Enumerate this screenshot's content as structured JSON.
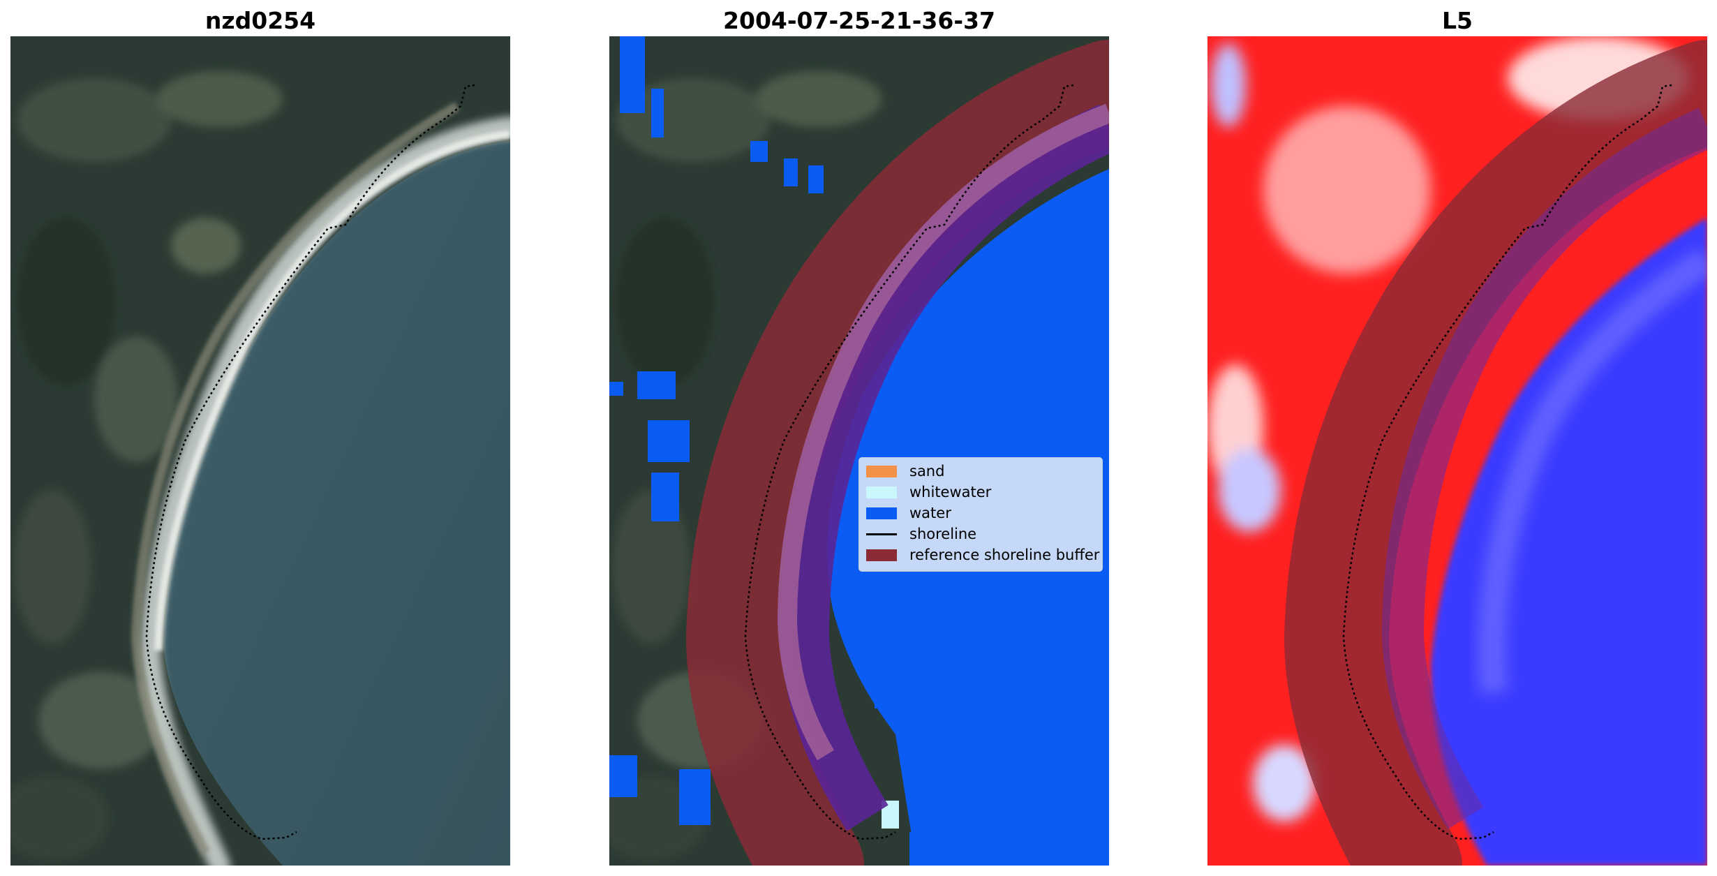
{
  "panels": [
    {
      "title": "nzd0254"
    },
    {
      "title": "2004-07-25-21-36-37"
    },
    {
      "title": "L5"
    }
  ],
  "legend": {
    "items": [
      {
        "label": "sand",
        "color": "#f39149",
        "kind": "patch"
      },
      {
        "label": "whitewater",
        "color": "#c9f7fb",
        "kind": "patch"
      },
      {
        "label": "water",
        "color": "#0a5cf5",
        "kind": "patch"
      },
      {
        "label": "shoreline",
        "color": "#000000",
        "kind": "line"
      },
      {
        "label": "reference shoreline buffer",
        "color": "#8a2b36",
        "kind": "patch"
      }
    ]
  },
  "colors": {
    "land_dark": "#2a3a33",
    "ocean": "#3a5a66",
    "water_class": "#0a5cf5",
    "buffer": "#8a2b36",
    "index_positive": "#ff1a1a",
    "index_negative": "#2a2aff"
  }
}
